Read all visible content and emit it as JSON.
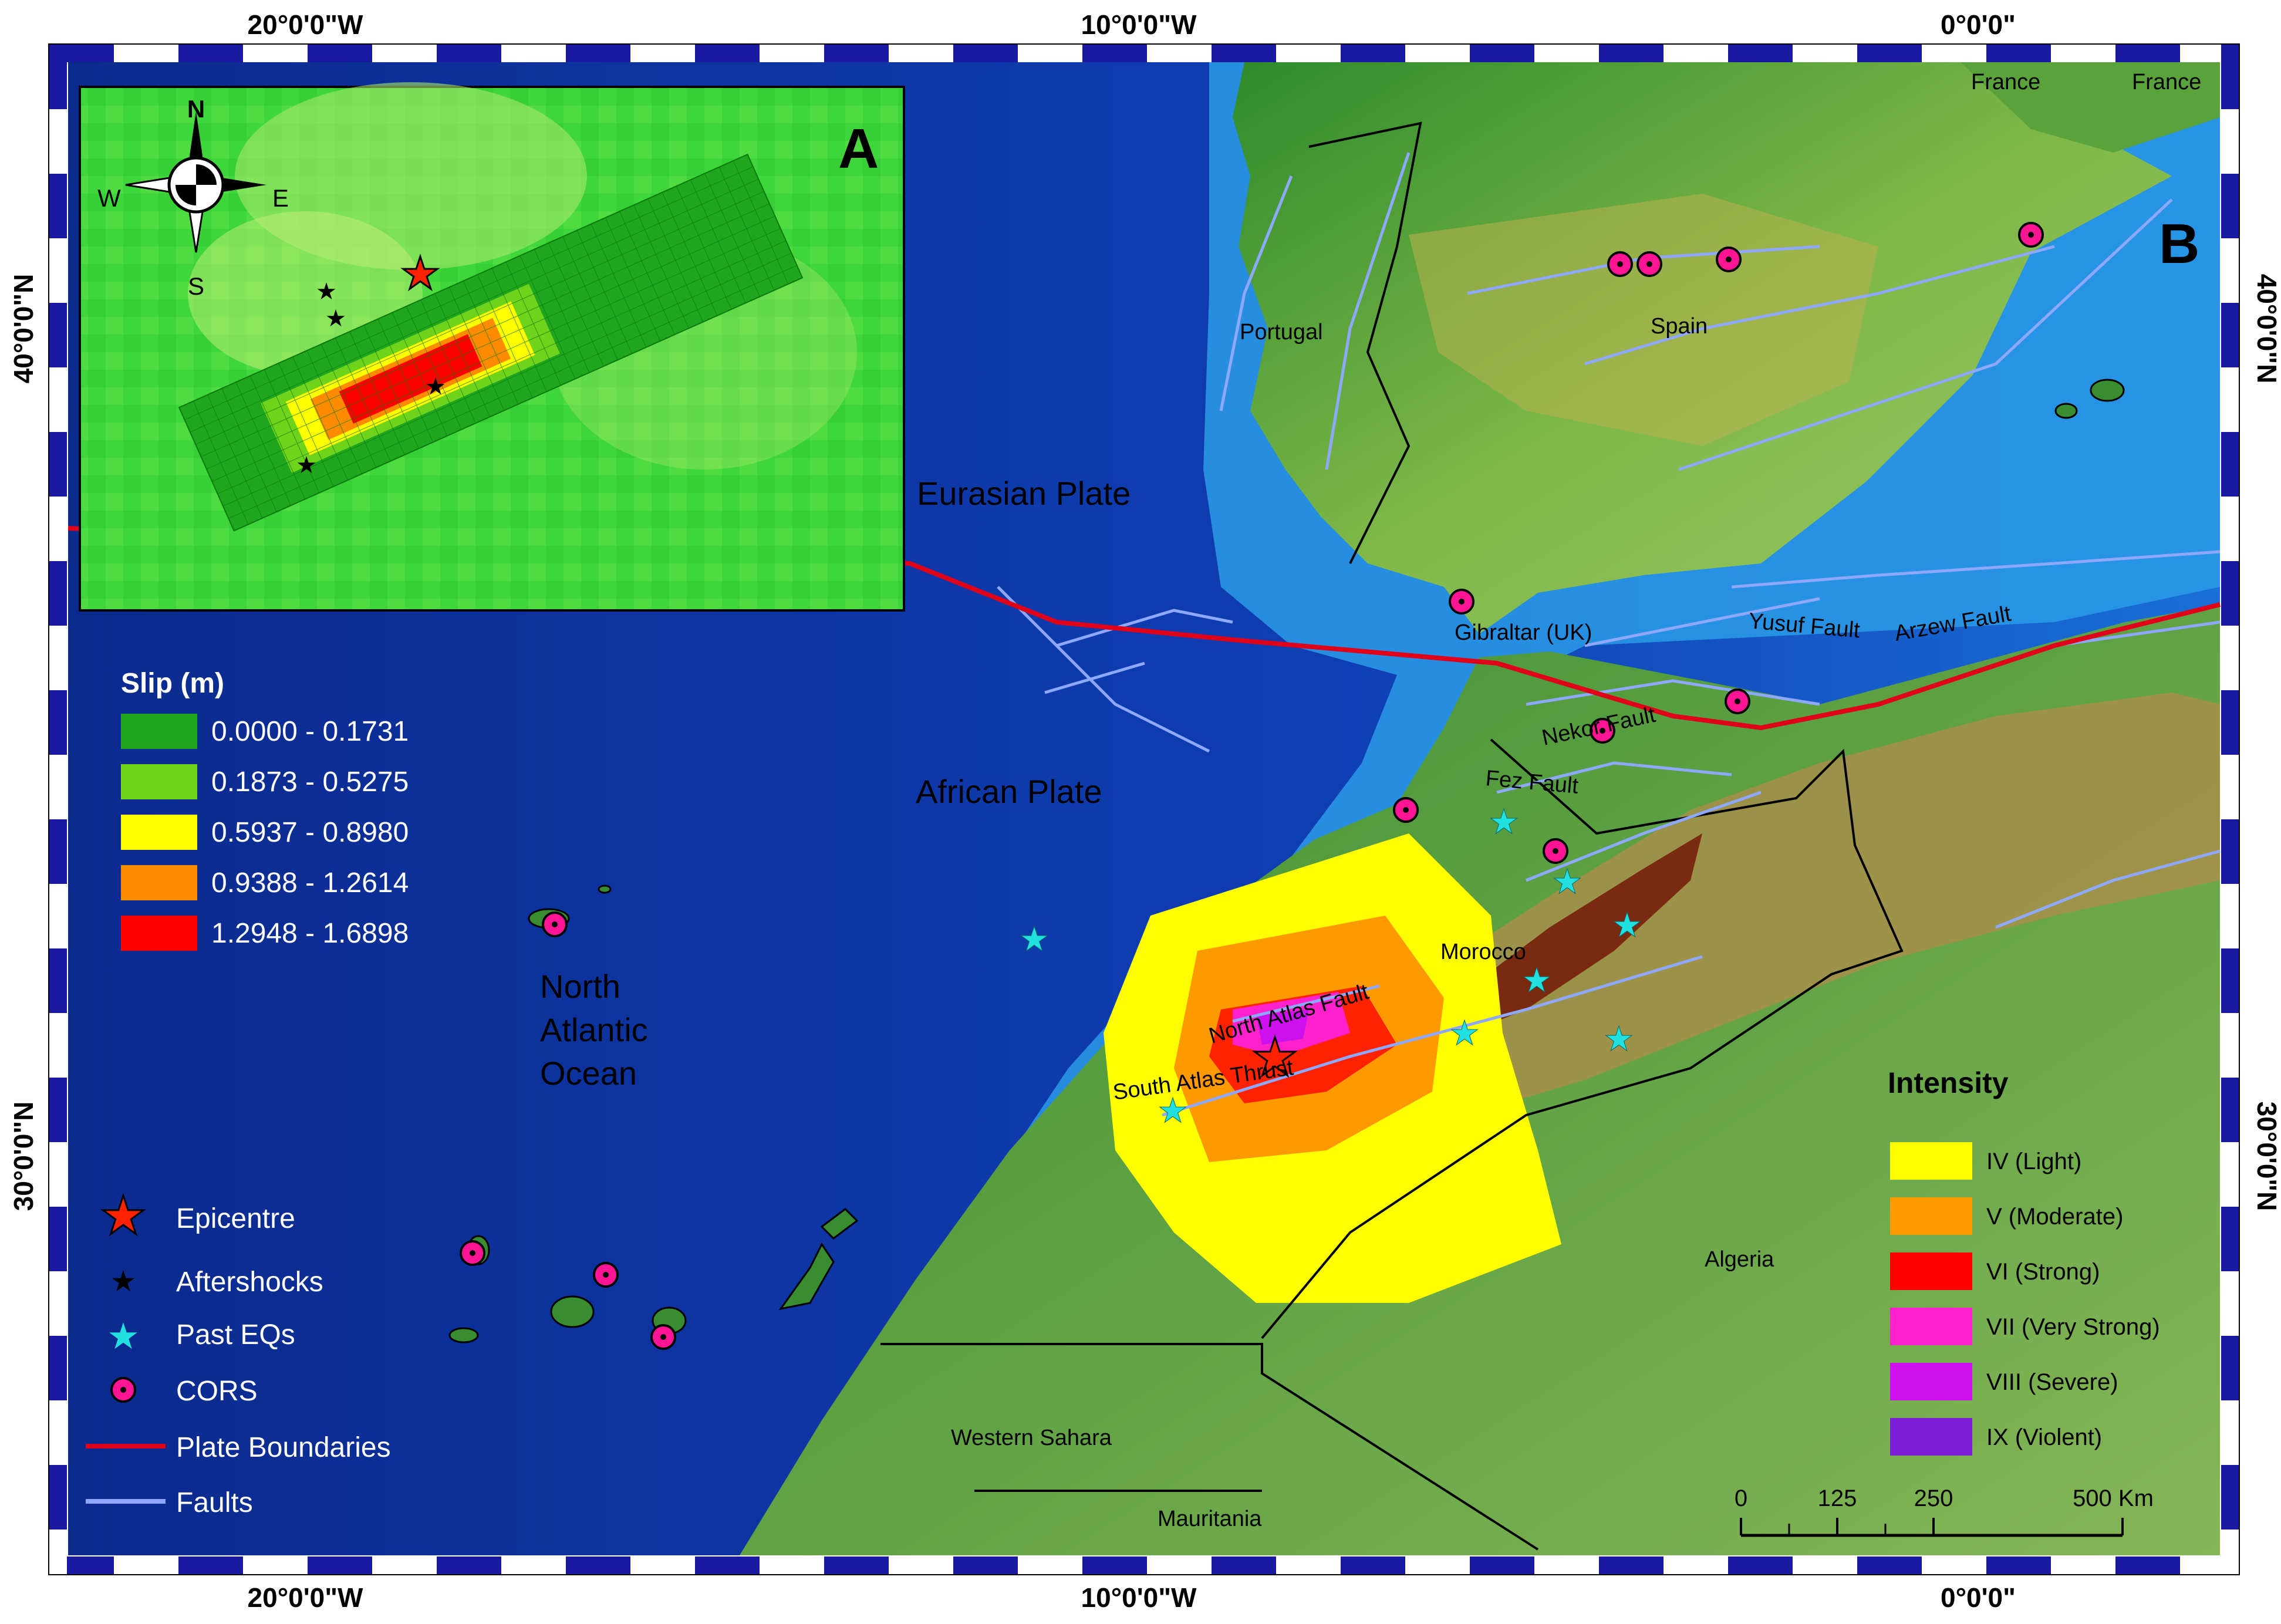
{
  "coords": {
    "top": [
      "20°0'0\"W",
      "10°0'0\"W",
      "0°0'0\""
    ],
    "bottom": [
      "20°0'0\"W",
      "10°0'0\"W",
      "0°0'0\""
    ],
    "left": [
      "40°0'0\"N",
      "30°0'0\"N"
    ],
    "right": [
      "40°0'0\"N",
      "30°0'0\"N"
    ]
  },
  "panel_labels": {
    "a": "A",
    "b": "B"
  },
  "compass": {
    "n": "N",
    "s": "S",
    "e": "E",
    "w": "W"
  },
  "labels": {
    "eurasian_plate": "Eurasian Plate",
    "african_plate": "African Plate",
    "ocean_1": "North",
    "ocean_2": "Atlantic",
    "ocean_3": "Ocean",
    "portugal": "Portugal",
    "spain": "Spain",
    "france_1": "France",
    "france_2": "France",
    "gibraltar": "Gibraltar (UK)",
    "morocco": "Morocco",
    "algeria": "Algeria",
    "western_sahara": "Western Sahara",
    "mauritania": "Mauritania",
    "yusuf_fault": "Yusuf Fault",
    "arzew_fault": "Arzew Fault",
    "nekor_fault": "Nekor Fault",
    "fez_fault": "Fez Fault",
    "north_atlas_fault": "North Atlas Fault",
    "south_atlas_thrust": "South Atlas Thrust"
  },
  "slip_legend": {
    "title": "Slip (m)",
    "items": [
      {
        "label": "0.0000 - 0.1731",
        "color": "#1fa61f"
      },
      {
        "label": "0.1873 - 0.5275",
        "color": "#6fd31c"
      },
      {
        "label": "0.5937 - 0.8980",
        "color": "#ffff00"
      },
      {
        "label": "0.9388 - 1.2614",
        "color": "#ff8c00"
      },
      {
        "label": "1.2948 - 1.6898",
        "color": "#ff0000"
      }
    ]
  },
  "symbol_legend": {
    "items": [
      {
        "label": "Epicentre",
        "icon": "red-star-icon"
      },
      {
        "label": "Aftershocks",
        "icon": "black-star-icon"
      },
      {
        "label": "Past EQs",
        "icon": "cyan-star-icon"
      },
      {
        "label": "CORS",
        "icon": "cors-circle-icon"
      },
      {
        "label": "Plate Boundaries",
        "icon": "red-line-icon"
      },
      {
        "label": "Faults",
        "icon": "blue-line-icon"
      }
    ]
  },
  "intensity_legend": {
    "title": "Intensity",
    "items": [
      {
        "label": "IV (Light)",
        "color": "#ffff00"
      },
      {
        "label": "V (Moderate)",
        "color": "#ff9900"
      },
      {
        "label": "VI (Strong)",
        "color": "#ff0000"
      },
      {
        "label": "VII (Very Strong)",
        "color": "#ff22cc"
      },
      {
        "label": "VIII (Severe)",
        "color": "#cc11ee"
      },
      {
        "label": "IX (Violent)",
        "color": "#7a1fd6"
      }
    ]
  },
  "scale_bar": {
    "ticks": [
      "0",
      "125",
      "250",
      "500 Km"
    ]
  },
  "colors": {
    "ocean_deep": "#0a2a9a",
    "ocean_shelf": "#27a9ec",
    "land_low": "#2f8a2a",
    "land_mid": "#c8c25a",
    "land_high": "#7a2a10",
    "plate_boundary": "#e0001a",
    "fault": "#8fa8ff",
    "cors": "#ff1493",
    "past_eq": "#22e0e0"
  }
}
